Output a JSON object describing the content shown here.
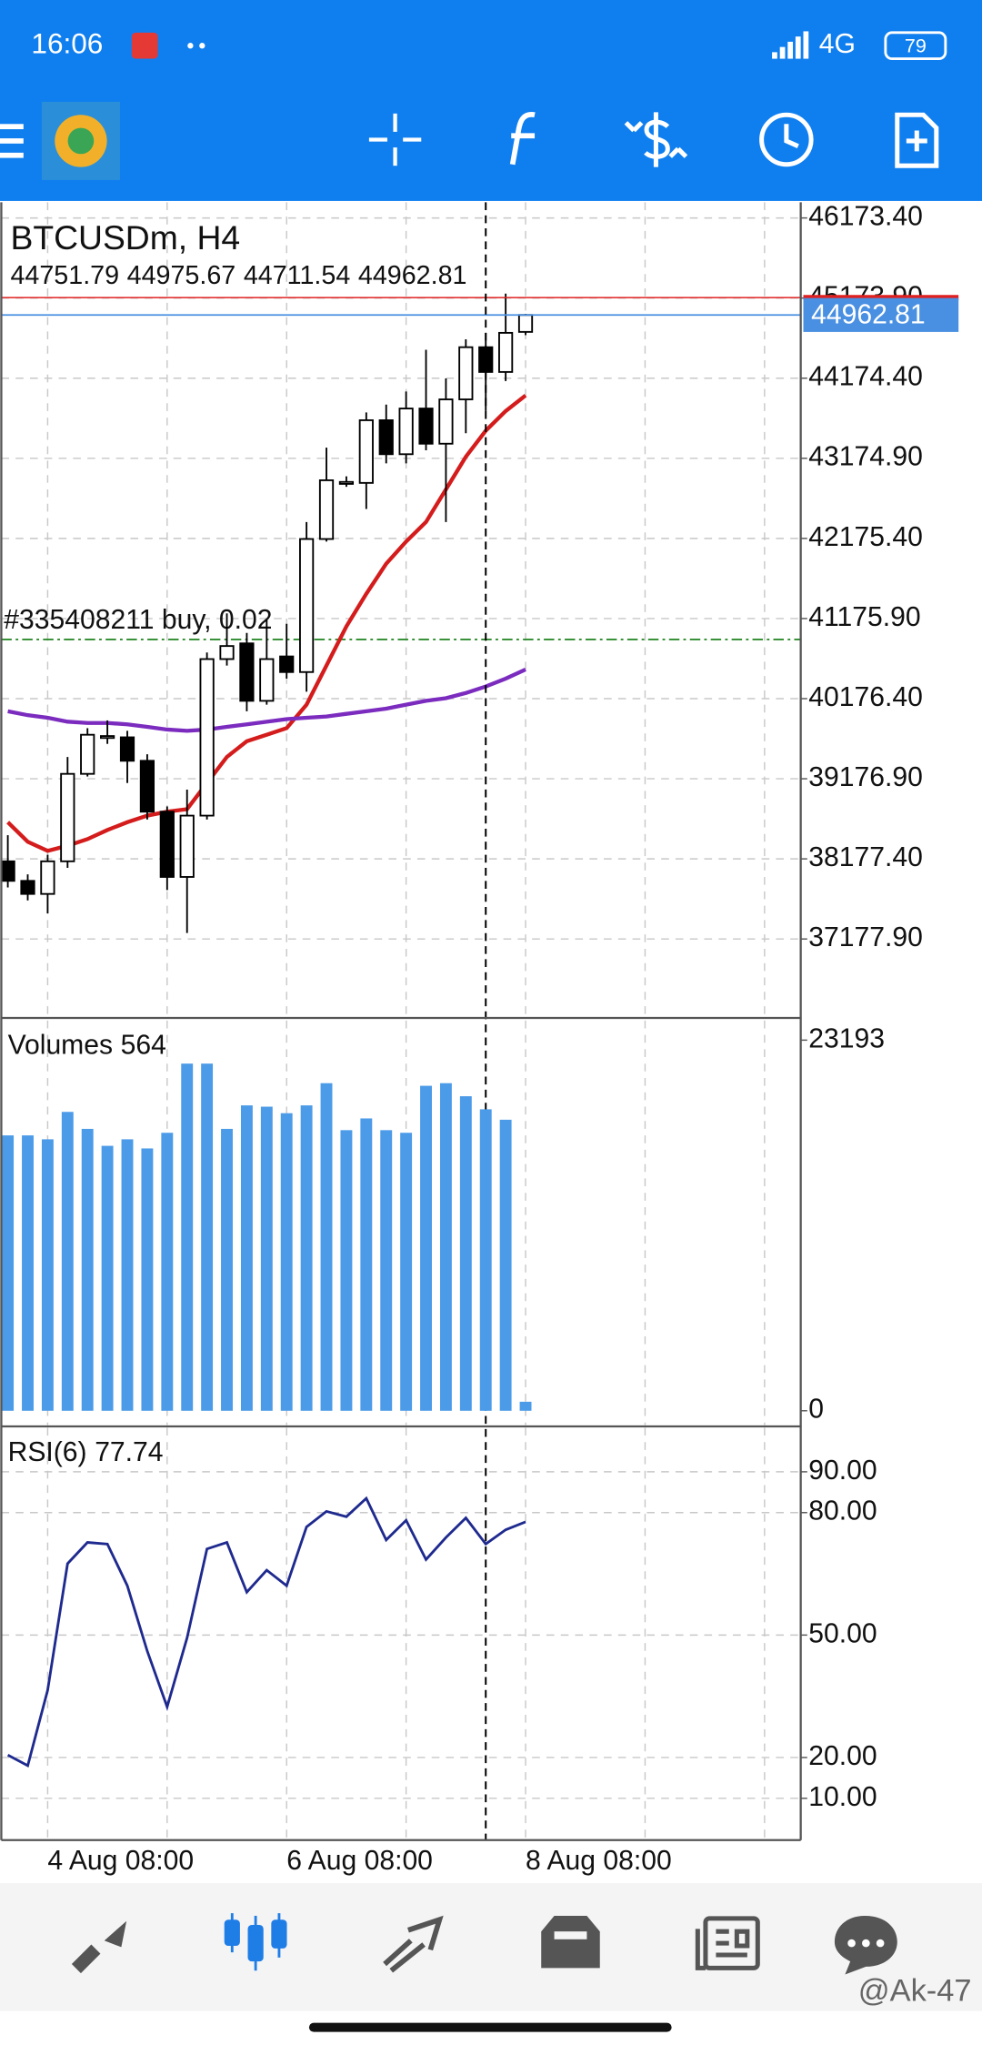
{
  "status_bar": {
    "time": "16:06",
    "network": "4G",
    "battery": "79"
  },
  "watermark": "@Ak-47",
  "chart_data": [
    {
      "type": "candlestick",
      "title": "BTCUSDm, H4",
      "categories": [
        null,
        null,
        "4 Aug 08:00",
        null,
        null,
        null,
        null,
        null,
        null,
        null,
        null,
        null,
        null,
        null,
        "6 Aug 08:00",
        null,
        null,
        null,
        null,
        null,
        null,
        null,
        null,
        null,
        null,
        null,
        "8 Aug 08:00"
      ],
      "open": [
        38147,
        37903,
        37740,
        38147,
        39238,
        39694,
        39694,
        39401,
        38766,
        37952,
        38717,
        40670,
        40866,
        40149,
        40703,
        40508,
        42168,
        42868,
        42868,
        43650,
        43226,
        43796,
        43357,
        43910,
        44561,
        44252,
        44751.79
      ],
      "high": [
        38473,
        37984,
        38228,
        39449,
        39808,
        39905,
        39775,
        39482,
        38831,
        39042,
        40752,
        41240,
        40996,
        41159,
        41110,
        42380,
        43308,
        42950,
        43747,
        43845,
        44008,
        44529,
        44171,
        44659,
        44740,
        45229,
        44975.67
      ],
      "low": [
        37821,
        37659,
        37496,
        38066,
        39205,
        39612,
        39124,
        38668,
        37789,
        37252,
        38668,
        40589,
        40019,
        40101,
        40426,
        40263,
        42136,
        42819,
        42543,
        43112,
        43112,
        43275,
        42380,
        43487,
        43764,
        44138,
        44711.54
      ],
      "close": [
        37903,
        37740,
        38147,
        39238,
        39726,
        39710,
        39401,
        38766,
        37952,
        38717,
        40670,
        40833,
        40149,
        40670,
        40508,
        42168,
        42901,
        42880,
        43650,
        43226,
        43796,
        43357,
        43910,
        44561,
        44252,
        44740,
        44962.81
      ],
      "up_color": "#ffffff",
      "down_color": "#000000",
      "lines": [
        {
          "color": "#d41c1c",
          "values": [
            38635,
            38391,
            38277,
            38342,
            38424,
            38538,
            38635,
            38717,
            38766,
            38798,
            39124,
            39449,
            39645,
            39726,
            39808,
            40101,
            40589,
            41077,
            41484,
            41859,
            42136,
            42380,
            42787,
            43194,
            43519,
            43764,
            43959
          ]
        },
        {
          "color": "#7b2cbf",
          "values": [
            40019,
            39970,
            39938,
            39889,
            39873,
            39873,
            39856,
            39824,
            39791,
            39775,
            39791,
            39824,
            39856,
            39889,
            39921,
            39938,
            39954,
            39987,
            40019,
            40052,
            40101,
            40149,
            40182,
            40247,
            40328,
            40426,
            40540
          ]
        }
      ],
      "bid_color": "#4a90e2",
      "ask": 45180,
      "ask_color": "#e02020",
      "order": {
        "label": "#335408211 buy, 0.02",
        "value": 40915,
        "color": "#2d8a2d"
      },
      "crosshair": 24,
      "ylim": [
        36193,
        46369
      ],
      "yticks": [
        {
          "value": 46173.4,
          "label": "46173.40"
        },
        {
          "value": 45173.9,
          "label": "45173.90"
        },
        {
          "value": 44174.4,
          "label": "44174.40"
        },
        {
          "value": 43174.9,
          "label": "43174.90"
        },
        {
          "value": 42175.4,
          "label": "42175.40"
        },
        {
          "value": 41175.9,
          "label": "41175.90"
        },
        {
          "value": 40176.4,
          "label": "40176.40"
        },
        {
          "value": 39176.9,
          "label": "39176.90"
        },
        {
          "value": 38177.4,
          "label": "38177.40"
        },
        {
          "value": 37177.9,
          "label": "37177.90"
        }
      ],
      "grid": true
    },
    {
      "type": "bar",
      "title": "Volumes",
      "values": [
        17232,
        17232,
        16987,
        18702,
        17640,
        16579,
        16987,
        16415,
        17395,
        21724,
        21724,
        17640,
        19110,
        19029,
        18620,
        19110,
        20499,
        17559,
        18294,
        17559,
        17395,
        20336,
        20499,
        19682,
        18865,
        18212,
        564
      ],
      "color": "#4c9be8",
      "ylim": [
        -898,
        24419
      ],
      "yticks": [
        23193,
        0
      ],
      "grid": true
    },
    {
      "type": "line",
      "title": "RSI(6)",
      "values": [
        20.6,
        18.0,
        36.5,
        67.5,
        72.7,
        72.3,
        62.1,
        46.1,
        32.4,
        49.3,
        71.1,
        72.7,
        60.5,
        65.9,
        62.1,
        76.5,
        80.3,
        79.0,
        83.5,
        73.3,
        78.1,
        68.5,
        73.9,
        78.7,
        72.3,
        75.8,
        77.74
      ],
      "color": "#1f2a8f",
      "ylim": [
        0.4,
        100.8
      ],
      "yticks": [
        {
          "value": 90,
          "label": "90.00"
        },
        {
          "value": 80,
          "label": "80.00"
        },
        {
          "value": 50,
          "label": "50.00"
        },
        {
          "value": 20,
          "label": "20.00"
        },
        {
          "value": 10,
          "label": "10.00"
        }
      ],
      "grid": true
    }
  ]
}
